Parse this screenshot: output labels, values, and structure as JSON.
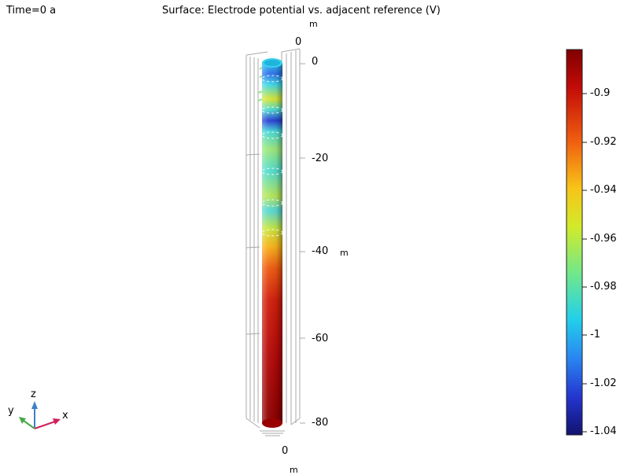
{
  "header": {
    "time_label": "Time=0 a",
    "plot_title": "Surface: Electrode potential vs. adjacent reference (V)"
  },
  "axes": {
    "z_unit_top": "m",
    "z_top_tick": "0",
    "z_ticks": [
      "0",
      "-20",
      "-40",
      "-60",
      "-80"
    ],
    "z_unit_side": "m",
    "bottom_tick": "0",
    "bottom_unit": "m"
  },
  "triad": {
    "z": "z",
    "y": "y",
    "x": "x"
  },
  "colorbar": {
    "ticks": [
      "-0.9",
      "-0.92",
      "-0.94",
      "-0.96",
      "-0.98",
      "-1",
      "-1.02",
      "-1.04"
    ],
    "colors": [
      "#7f0000",
      "#d21a0a",
      "#f5a40a",
      "#d9e81a",
      "#7fe87a",
      "#25d2e6",
      "#2c6cf0",
      "#1a1a86"
    ]
  }
}
